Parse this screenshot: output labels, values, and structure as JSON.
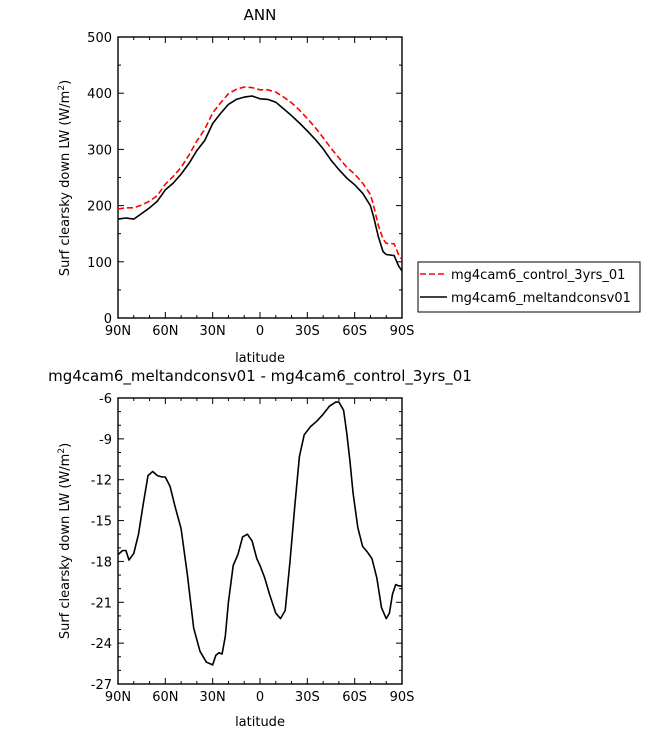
{
  "chart_data": [
    {
      "type": "line",
      "title": "ANN",
      "xlabel": "latitude",
      "ylabel": "Surf clearsky down LW (W/m²)",
      "xlim": [
        90,
        -90
      ],
      "ylim": [
        0,
        500
      ],
      "x_tick_labels": [
        "90N",
        "60N",
        "30N",
        "0",
        "30S",
        "60S",
        "90S"
      ],
      "x_tick_values": [
        90,
        60,
        30,
        0,
        -30,
        -60,
        -90
      ],
      "y_tick_values": [
        0,
        100,
        200,
        300,
        400,
        500
      ],
      "legend": "right",
      "series": [
        {
          "name": "mg4cam6_control_3yrs_01",
          "color": "#ff0000",
          "style": "dashed",
          "x": [
            90,
            85,
            80,
            75,
            70,
            65,
            60,
            55,
            50,
            45,
            40,
            35,
            30,
            25,
            20,
            15,
            10,
            5,
            0,
            -5,
            -10,
            -15,
            -20,
            -25,
            -30,
            -35,
            -40,
            -45,
            -50,
            -55,
            -60,
            -65,
            -70,
            -72,
            -75,
            -78,
            -80,
            -85,
            -88,
            -90
          ],
          "y": [
            194,
            196,
            196,
            201,
            208,
            218,
            238,
            252,
            268,
            290,
            315,
            336,
            365,
            383,
            399,
            407,
            411,
            410,
            406,
            406,
            402,
            393,
            383,
            370,
            355,
            339,
            321,
            302,
            285,
            268,
            256,
            240,
            220,
            200,
            165,
            140,
            133,
            132,
            112,
            104
          ]
        },
        {
          "name": "mg4cam6_meltandconsv01",
          "color": "#000000",
          "style": "solid",
          "x": [
            90,
            85,
            80,
            75,
            70,
            65,
            60,
            55,
            50,
            45,
            40,
            35,
            30,
            25,
            20,
            15,
            10,
            5,
            0,
            -5,
            -10,
            -15,
            -20,
            -25,
            -30,
            -35,
            -40,
            -45,
            -50,
            -55,
            -60,
            -65,
            -70,
            -72,
            -75,
            -78,
            -80,
            -85,
            -88,
            -90
          ],
          "y": [
            176,
            178,
            176,
            186,
            196,
            208,
            228,
            240,
            256,
            275,
            298,
            316,
            346,
            364,
            380,
            389,
            393,
            395,
            390,
            389,
            384,
            372,
            360,
            347,
            333,
            318,
            301,
            281,
            264,
            249,
            237,
            222,
            200,
            180,
            145,
            118,
            113,
            111,
            92,
            84
          ]
        }
      ]
    },
    {
      "type": "line",
      "title": "mg4cam6_meltandconsv01 - mg4cam6_control_3yrs_01",
      "xlabel": "latitude",
      "ylabel": "Surf clearsky down LW (W/m²)",
      "xlim": [
        90,
        -90
      ],
      "ylim": [
        -27,
        -6
      ],
      "x_tick_labels": [
        "90N",
        "60N",
        "30N",
        "0",
        "30S",
        "60S",
        "90S"
      ],
      "x_tick_values": [
        90,
        60,
        30,
        0,
        -30,
        -60,
        -90
      ],
      "y_tick_values": [
        -6,
        -9,
        -12,
        -15,
        -18,
        -21,
        -24,
        -27
      ],
      "series": [
        {
          "color": "#000000",
          "style": "solid",
          "x": [
            90,
            87,
            85,
            83,
            80,
            77,
            74,
            71,
            68,
            65,
            62,
            60,
            57,
            54,
            50,
            46,
            42,
            38,
            34,
            30,
            28,
            26,
            24,
            22,
            20,
            17,
            14,
            11,
            8,
            5,
            2,
            0,
            -3,
            -6,
            -10,
            -13,
            -16,
            -19,
            -22,
            -25,
            -28,
            -32,
            -36,
            -40,
            -44,
            -48,
            -50,
            -53,
            -55,
            -57,
            -59,
            -62,
            -65,
            -68,
            -71,
            -74,
            -77,
            -80,
            -82,
            -84,
            -86,
            -88,
            -90
          ],
          "y": [
            -17.5,
            -17.2,
            -17.2,
            -17.9,
            -17.4,
            -16.0,
            -13.8,
            -11.7,
            -11.4,
            -11.7,
            -11.8,
            -11.8,
            -12.5,
            -13.9,
            -15.6,
            -19.0,
            -22.9,
            -24.6,
            -25.4,
            -25.6,
            -24.9,
            -24.7,
            -24.8,
            -23.5,
            -21.0,
            -18.3,
            -17.5,
            -16.2,
            -16.0,
            -16.5,
            -17.8,
            -18.3,
            -19.2,
            -20.4,
            -21.8,
            -22.2,
            -21.6,
            -18.0,
            -14.0,
            -10.3,
            -8.7,
            -8.1,
            -7.7,
            -7.2,
            -6.6,
            -6.3,
            -6.3,
            -6.9,
            -8.6,
            -10.6,
            -13.0,
            -15.5,
            -16.9,
            -17.3,
            -17.8,
            -19.2,
            -21.4,
            -22.2,
            -21.8,
            -20.4,
            -19.7,
            -19.8,
            -19.8
          ]
        }
      ]
    }
  ]
}
